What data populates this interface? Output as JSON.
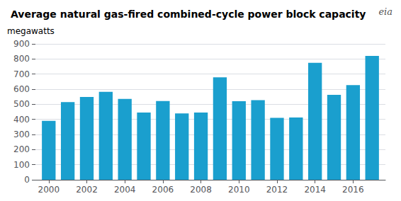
{
  "chart_data": {
    "type": "bar",
    "title": "Average natural gas-fired combined-cycle power block capacity",
    "ylabel": "megawatts",
    "annotations": [
      "eia"
    ],
    "x": [
      2000,
      2001,
      2002,
      2003,
      2004,
      2005,
      2006,
      2007,
      2008,
      2009,
      2010,
      2011,
      2012,
      2013,
      2014,
      2015,
      2016,
      2017
    ],
    "values": [
      390,
      515,
      548,
      583,
      535,
      445,
      522,
      440,
      445,
      678,
      520,
      527,
      410,
      412,
      775,
      562,
      627,
      820
    ],
    "color": "#1a9fce",
    "xlim": [
      1999.3,
      2017.7
    ],
    "xticks": [
      2000,
      2002,
      2004,
      2006,
      2008,
      2010,
      2012,
      2014,
      2016
    ],
    "ylim": [
      0,
      900
    ],
    "yticks": [
      0,
      100,
      200,
      300,
      400,
      500,
      600,
      700,
      800,
      900
    ],
    "grid": true
  }
}
